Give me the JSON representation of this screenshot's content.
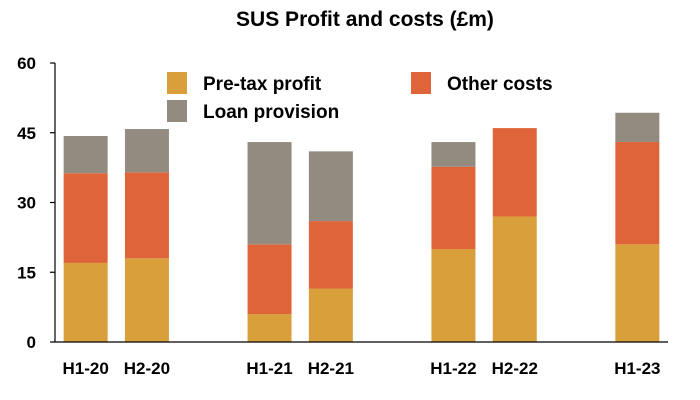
{
  "chart_data": {
    "type": "bar",
    "stacked": true,
    "title": "SUS Profit and costs (£m)",
    "categories": [
      "H1-20",
      "H2-20",
      "",
      "H1-21",
      "H2-21",
      "",
      "H1-22",
      "H2-22",
      "",
      "H1-23"
    ],
    "series": [
      {
        "name": "Pre-tax profit",
        "color": "#D89F3A",
        "values": [
          17,
          18,
          null,
          6,
          11.5,
          null,
          20,
          27,
          null,
          21
        ]
      },
      {
        "name": "Other costs",
        "color": "#E0643A",
        "values": [
          19.3,
          18.5,
          null,
          15,
          14.5,
          null,
          17.7,
          19,
          null,
          22
        ]
      },
      {
        "name": "Loan provision",
        "color": "#938A80",
        "values": [
          8,
          9.3,
          null,
          22,
          15,
          null,
          5.3,
          0,
          null,
          6.3
        ]
      }
    ],
    "yticks": [
      "0",
      "15",
      "30",
      "45",
      "60"
    ],
    "ylim": [
      0,
      60
    ],
    "grid": false,
    "legend_position": "top-center"
  }
}
